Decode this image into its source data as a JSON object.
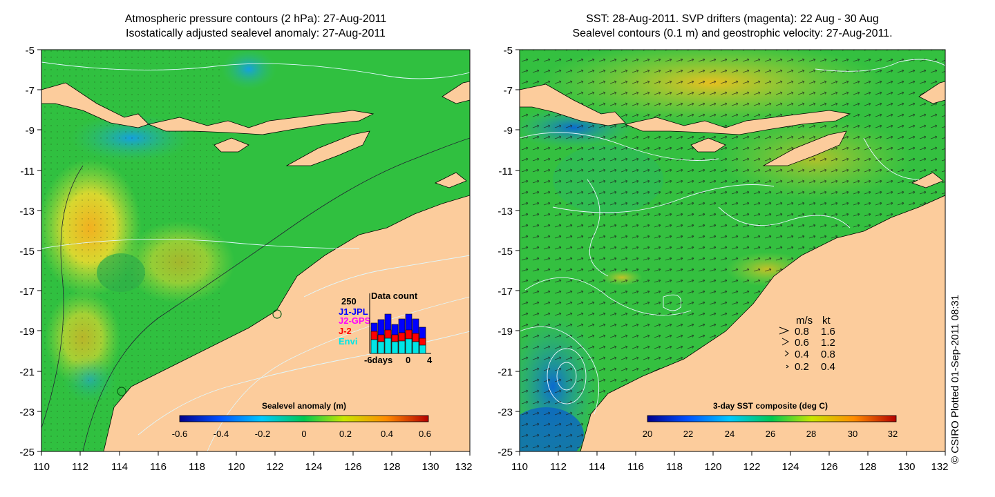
{
  "left_panel": {
    "title_line1": "Atmospheric pressure contours (2 hPa): 27-Aug-2011",
    "title_line2": "Isostatically adjusted sealevel anomaly: 27-Aug-2011",
    "x_ticks": [
      "110",
      "112",
      "114",
      "116",
      "118",
      "120",
      "122",
      "124",
      "126",
      "128",
      "130",
      "132"
    ],
    "y_ticks": [
      "-5",
      "-7",
      "-9",
      "-11",
      "-13",
      "-15",
      "-17",
      "-19",
      "-21",
      "-23",
      "-25"
    ],
    "colorbar": {
      "label": "Sealevel anomaly (m)",
      "ticks": [
        "-0.6",
        "-0.4",
        "-0.2",
        "0",
        "0.2",
        "0.4",
        "0.6"
      ],
      "colors": [
        "#00008c",
        "#0050ff",
        "#00c8ff",
        "#00c850",
        "#c8e600",
        "#ff8c00",
        "#b40000"
      ]
    },
    "data_count": {
      "title": "Data count",
      "max_label": "250",
      "missions": [
        {
          "name": "J1-JPL",
          "color": "#0000ff"
        },
        {
          "name": "J2-GPS",
          "color": "#ff00ff"
        },
        {
          "name": "J-2",
          "color": "#ff0000"
        },
        {
          "name": "Envi",
          "color": "#00e6e6"
        }
      ],
      "x_labels": [
        "-6days",
        "0",
        "4"
      ]
    }
  },
  "right_panel": {
    "title_line1": "SST: 28-Aug-2011. SVP drifters (magenta): 22 Aug - 30 Aug",
    "title_line2": "Sealevel contours (0.1 m) and geostrophic velocity: 27-Aug-2011.",
    "x_ticks": [
      "110",
      "112",
      "114",
      "116",
      "118",
      "120",
      "122",
      "124",
      "126",
      "128",
      "130",
      "132"
    ],
    "y_ticks": [
      "-5",
      "-7",
      "-9",
      "-11",
      "-13",
      "-15",
      "-17",
      "-19",
      "-21",
      "-23",
      "-25"
    ],
    "colorbar": {
      "label": "3-day SST composite (deg C)",
      "ticks": [
        "20",
        "22",
        "24",
        "26",
        "28",
        "30",
        "32"
      ],
      "colors": [
        "#00008c",
        "#0050ff",
        "#00c8ff",
        "#00c850",
        "#c8e600",
        "#ff8c00",
        "#b40000"
      ]
    },
    "velocity_legend": {
      "header_ms": "m/s",
      "header_kt": "kt",
      "rows": [
        {
          "ms": "0.8",
          "kt": "1.6"
        },
        {
          "ms": "0.6",
          "kt": "1.2"
        },
        {
          "ms": "0.4",
          "kt": "0.8"
        },
        {
          "ms": "0.2",
          "kt": "0.4"
        }
      ]
    }
  },
  "credit": "© CSIRO Plotted 01-Sep-2011 08:31",
  "colors": {
    "land": "#fccc9c",
    "ocean_green": "#2cc43c",
    "warm_yellow": "#b8e04a",
    "cool_blue": "#1ab0e0"
  }
}
